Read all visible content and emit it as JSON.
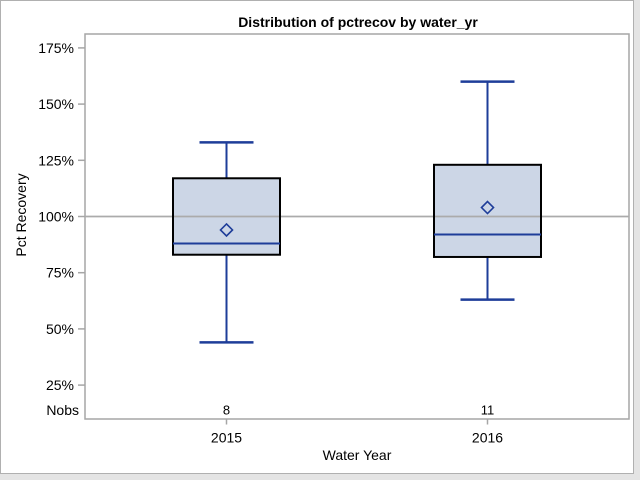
{
  "window": {
    "background": "#e4e4e4",
    "chart_background": "#ffffff",
    "border_color": "#b0b0b0"
  },
  "chart_data": {
    "type": "boxplot",
    "title": "Distribution of pctrecov by water_yr",
    "xlabel": "Water Year",
    "ylabel": "Pct Recovery",
    "y_axis": {
      "tick_values": [
        25,
        50,
        75,
        100,
        125,
        150,
        175
      ],
      "tick_labels": [
        "25%",
        "50%",
        "75%",
        "100%",
        "125%",
        "150%",
        "175%"
      ],
      "range": [
        10,
        182
      ],
      "grid": false
    },
    "reference_line_y": 100,
    "legend": "none",
    "nobs_label": "Nobs",
    "categories": [
      "2015",
      "2016"
    ],
    "series": [
      {
        "category": "2015",
        "nobs": "8",
        "whisker_low": 44,
        "q1": 83,
        "median": 88,
        "mean": 94,
        "q3": 117,
        "whisker_high": 133
      },
      {
        "category": "2016",
        "nobs": "11",
        "whisker_low": 63,
        "q1": 82,
        "median": 92,
        "mean": 104,
        "q3": 123,
        "whisker_high": 160
      }
    ],
    "colors": {
      "box_fill": "#ccd6e6",
      "box_border": "#000000",
      "whisker": "#1e3d99",
      "median": "#1e3d99",
      "mean_marker": "#1e3d99",
      "frame": "#a6a6a6",
      "reference_line": "#ababab",
      "text": "#000000"
    }
  }
}
